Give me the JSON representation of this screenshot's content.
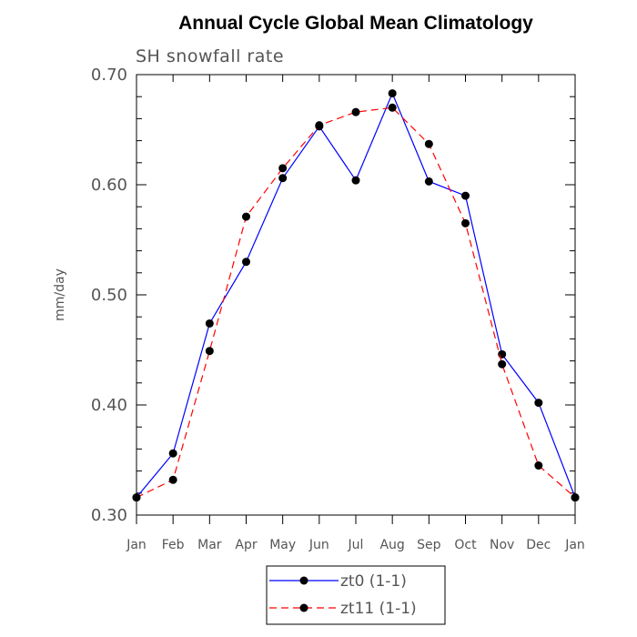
{
  "chart_data": {
    "type": "line",
    "title": "Annual Cycle Global Mean Climatology",
    "subtitle": "SH snowfall rate",
    "xlabel": "",
    "ylabel": "mm/day",
    "ylim": [
      0.3,
      0.7
    ],
    "y_ticks": [
      "0.30",
      "0.40",
      "0.50",
      "0.60",
      "0.70"
    ],
    "categories": [
      "Jan",
      "Feb",
      "Mar",
      "Apr",
      "May",
      "Jun",
      "Jul",
      "Aug",
      "Sep",
      "Oct",
      "Nov",
      "Dec",
      "Jan"
    ],
    "series": [
      {
        "name": "zt0 (1-1)",
        "color": "#0000ff",
        "dash": "solid",
        "values": [
          0.316,
          0.356,
          0.474,
          0.53,
          0.606,
          0.653,
          0.604,
          0.683,
          0.603,
          0.59,
          0.446,
          0.402,
          0.316
        ]
      },
      {
        "name": "zt11 (1-1)",
        "color": "#ff0000",
        "dash": "dashed",
        "values": [
          0.316,
          0.332,
          0.449,
          0.571,
          0.615,
          0.654,
          0.666,
          0.67,
          0.637,
          0.565,
          0.437,
          0.345,
          0.316
        ]
      }
    ],
    "grid": false,
    "legend": "bottom-center"
  }
}
